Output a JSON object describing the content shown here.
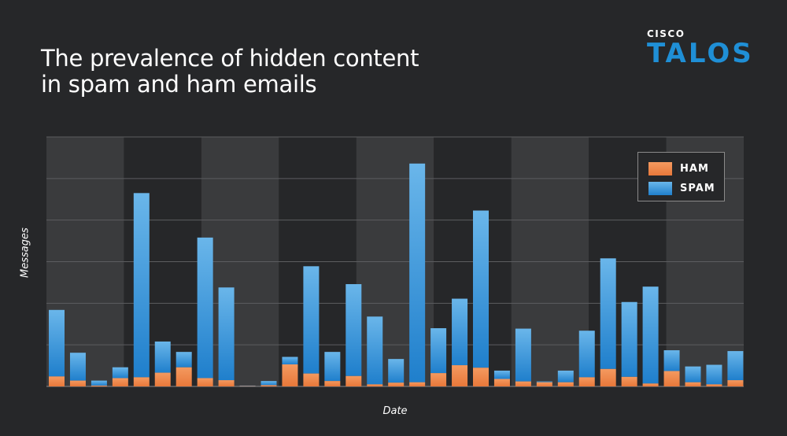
{
  "title_lines": [
    "The prevalence of hidden content",
    "in spam and ham emails"
  ],
  "logo": {
    "cisco": "CISCO",
    "talos": "TALOS"
  },
  "colors": {
    "ham": "#f0874a",
    "spam_top": "#6ab6ea",
    "spam_bottom": "#1f7fcc"
  },
  "chart_data": {
    "type": "bar",
    "stacked": true,
    "xlabel": "Date",
    "ylabel": "Messages",
    "ylim": [
      0,
      6
    ],
    "grid": true,
    "legend_position": "top-right",
    "series": [
      {
        "name": "HAM",
        "values": [
          0.24,
          0.14,
          0.02,
          0.2,
          0.22,
          0.33,
          0.46,
          0.2,
          0.15,
          0.01,
          0.03,
          0.53,
          0.31,
          0.13,
          0.25,
          0.05,
          0.09,
          0.1,
          0.32,
          0.51,
          0.45,
          0.18,
          0.12,
          0.1,
          0.1,
          0.22,
          0.42,
          0.23,
          0.07,
          0.37,
          0.1,
          0.05,
          0.15
        ]
      },
      {
        "name": "SPAM",
        "values": [
          1.6,
          0.67,
          0.12,
          0.26,
          4.43,
          0.75,
          0.37,
          3.38,
          2.23,
          0.01,
          0.1,
          0.18,
          2.58,
          0.7,
          2.21,
          1.63,
          0.57,
          5.26,
          1.08,
          1.6,
          3.78,
          0.2,
          1.27,
          0.02,
          0.28,
          1.12,
          2.66,
          1.8,
          2.33,
          0.5,
          0.38,
          0.47,
          0.7
        ]
      }
    ],
    "legend": [
      "HAM",
      "SPAM"
    ]
  }
}
